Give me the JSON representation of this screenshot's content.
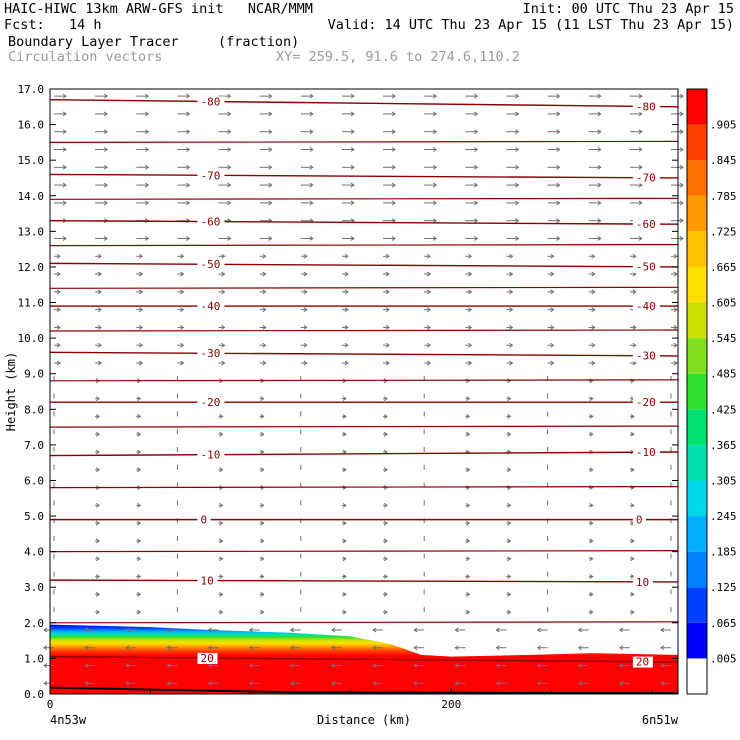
{
  "header": {
    "line1_left": "HAIC-HIWC 13km ARW-GFS init   NCAR/MMM",
    "line1_right": "Init: 00 UTC Thu 23 Apr 15",
    "line2_left": "Fcst:   14 h",
    "line2_right": "Valid: 14 UTC Thu 23 Apr 15 (11 LST Thu 23 Apr 15)",
    "line3_left": "Boundary Layer Tracer",
    "line3_mid": "(fraction)",
    "line4_left": "Circulation vectors",
    "line4_mid": "XY= 259.5, 91.6 to 274.6,110.2"
  },
  "chart_data": {
    "type": "heatmap",
    "title": "Boundary Layer Tracer",
    "units": "(fraction)",
    "overlay": "Circulation vectors",
    "xlabel": "Distance (km)",
    "ylabel": "Height (km)",
    "xlim": [
      0,
      313
    ],
    "ylim": [
      0,
      17
    ],
    "xticks": [
      {
        "v": 0,
        "label": "0"
      },
      {
        "v": 200,
        "label": "200"
      }
    ],
    "yticks": [
      "0.0",
      "1.0",
      "2.0",
      "3.0",
      "4.0",
      "5.0",
      "6.0",
      "7.0",
      "8.0",
      "9.0",
      "10.0",
      "11.0",
      "12.0",
      "13.0",
      "14.0",
      "15.0",
      "16.0",
      "17.0"
    ],
    "x_endpoints": {
      "left": "4n53w",
      "right": "6n51w"
    },
    "colorbar": {
      "labels": [
        ".005",
        ".065",
        ".125",
        ".185",
        ".245",
        ".305",
        ".365",
        ".425",
        ".485",
        ".545",
        ".605",
        ".665",
        ".725",
        ".785",
        ".845",
        ".905"
      ],
      "colors": [
        "#ffffff",
        "#0000ff",
        "#0040ff",
        "#0080ff",
        "#00b0ff",
        "#00d8e8",
        "#00e0b0",
        "#00e070",
        "#30e030",
        "#80e020",
        "#c8e000",
        "#ffe000",
        "#ffc000",
        "#ff9a00",
        "#ff7000",
        "#ff4000",
        "#ff0000"
      ]
    },
    "bl_top_km": [
      {
        "x": 0,
        "y": 1.95
      },
      {
        "x": 50,
        "y": 1.88
      },
      {
        "x": 80,
        "y": 1.8
      },
      {
        "x": 120,
        "y": 1.72
      },
      {
        "x": 150,
        "y": 1.62
      },
      {
        "x": 170,
        "y": 1.4
      },
      {
        "x": 185,
        "y": 1.1
      },
      {
        "x": 200,
        "y": 1.05
      },
      {
        "x": 240,
        "y": 1.1
      },
      {
        "x": 270,
        "y": 1.15
      },
      {
        "x": 313,
        "y": 1.1
      }
    ],
    "isotherms": [
      {
        "value": 20,
        "label": "20",
        "y_left": 1.05,
        "y_right": 0.9
      },
      {
        "value": 10,
        "label": "10",
        "y_left": 3.2,
        "y_right": 3.15
      },
      {
        "value": 0,
        "label": "0",
        "y_left": 4.9,
        "y_right": 4.9
      },
      {
        "value": -10,
        "label": "-10",
        "y_left": 6.7,
        "y_right": 6.8
      },
      {
        "value": -20,
        "label": "-20",
        "y_left": 8.2,
        "y_right": 8.2
      },
      {
        "value": -30,
        "label": "-30",
        "y_left": 9.6,
        "y_right": 9.5
      },
      {
        "value": -40,
        "label": "-40",
        "y_left": 10.9,
        "y_right": 10.9
      },
      {
        "value": -50,
        "label": "-50",
        "y_left": 12.1,
        "y_right": 12.0
      },
      {
        "value": -60,
        "label": "-60",
        "y_left": 13.3,
        "y_right": 13.2
      },
      {
        "value": -70,
        "label": "-70",
        "y_left": 14.6,
        "y_right": 14.5
      },
      {
        "value": -80,
        "label": "-80",
        "y_left": 16.7,
        "y_right": 16.5
      }
    ],
    "extra_contours_km": [
      2.0,
      4.0,
      5.8,
      7.5,
      8.8,
      10.2,
      11.4,
      12.6,
      13.9,
      15.5
    ],
    "vector_color": "#707070",
    "contour_color": "#8b0000"
  }
}
